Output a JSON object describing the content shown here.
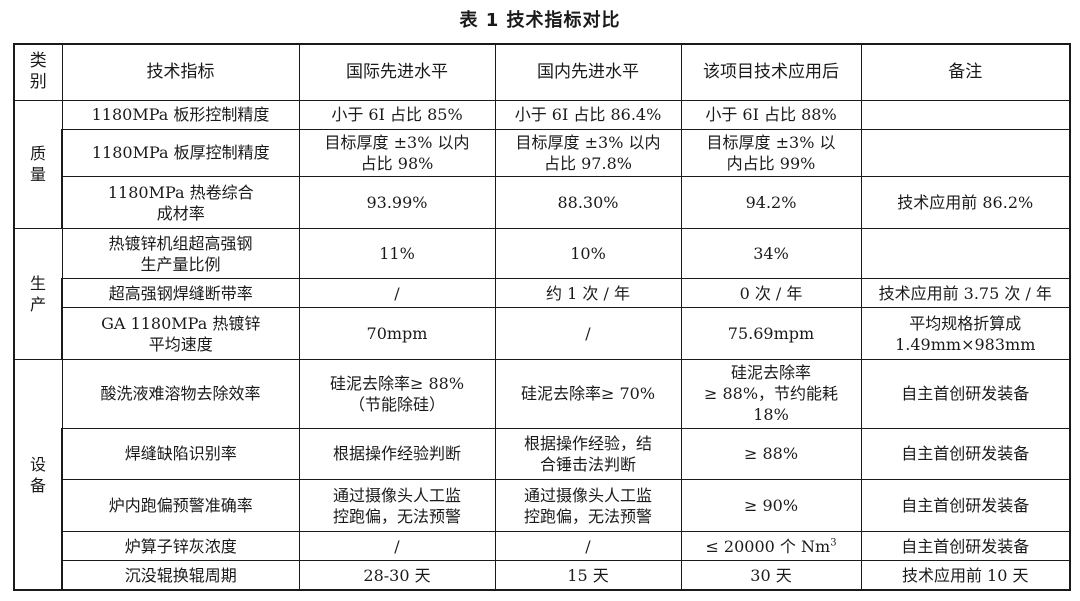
{
  "caption": "表 1    技术指标对比",
  "headers": {
    "category": "类\n别",
    "metric": "技术指标",
    "intl": "国际先进水平",
    "domestic": "国内先进水平",
    "project": "该项目技术应用后",
    "note": "备注"
  },
  "categories": {
    "quality": "质\n量",
    "production": "生\n产",
    "equipment": "设\n备"
  },
  "rows": [
    {
      "metric": "1180MPa 板形控制精度",
      "intl": "小于 6I 占比 85%",
      "domestic": "小于 6I 占比 86.4%",
      "project": "小于 6I 占比 88%",
      "note": ""
    },
    {
      "metric": "1180MPa 板厚控制精度",
      "intl": "目标厚度 ±3% 以内\n占比 98%",
      "domestic": "目标厚度 ±3% 以内\n占比 97.8%",
      "project": "目标厚度 ±3% 以\n内占比 99%",
      "note": ""
    },
    {
      "metric": "1180MPa 热卷综合\n成材率",
      "intl": "93.99%",
      "domestic": "88.30%",
      "project": "94.2%",
      "note": "技术应用前 86.2%"
    },
    {
      "metric": "热镀锌机组超高强钢\n生产量比例",
      "intl": "11%",
      "domestic": "10%",
      "project": "34%",
      "note": ""
    },
    {
      "metric": "超高强钢焊缝断带率",
      "intl": "/",
      "domestic": "约 1 次 / 年",
      "project": "0 次 / 年",
      "note": "技术应用前 3.75 次 / 年"
    },
    {
      "metric": "GA 1180MPa 热镀锌\n平均速度",
      "intl": "70mpm",
      "domestic": "/",
      "project": "75.69mpm",
      "note": "平均规格折算成\n1.49mm×983mm"
    },
    {
      "metric": "酸洗液难溶物去除效率",
      "intl": "硅泥去除率≥ 88%\n（节能除硅）",
      "domestic": "硅泥去除率≥ 70%",
      "project": "硅泥去除率\n≥ 88%，节约能耗\n18%",
      "note": "自主首创研发装备"
    },
    {
      "metric": "焊缝缺陷识别率",
      "intl": "根据操作经验判断",
      "domestic": "根据操作经验，结\n合锤击法判断",
      "project": "≥ 88%",
      "note": "自主首创研发装备"
    },
    {
      "metric": "炉内跑偏预警准确率",
      "intl": "通过摄像头人工监\n控跑偏，无法预警",
      "domestic": "通过摄像头人工监\n控跑偏，无法预警",
      "project": "≥ 90%",
      "note": "自主首创研发装备"
    },
    {
      "metric": "炉算子锌灰浓度",
      "intl": "/",
      "domestic": "/",
      "project": "≤ 20000 个 Nm",
      "project_sup": "3",
      "note": "自主首创研发装备"
    },
    {
      "metric": "沉没辊换辊周期",
      "intl": "28-30 天",
      "domestic": "15 天",
      "project": "30 天",
      "note": "技术应用前 10 天"
    }
  ]
}
